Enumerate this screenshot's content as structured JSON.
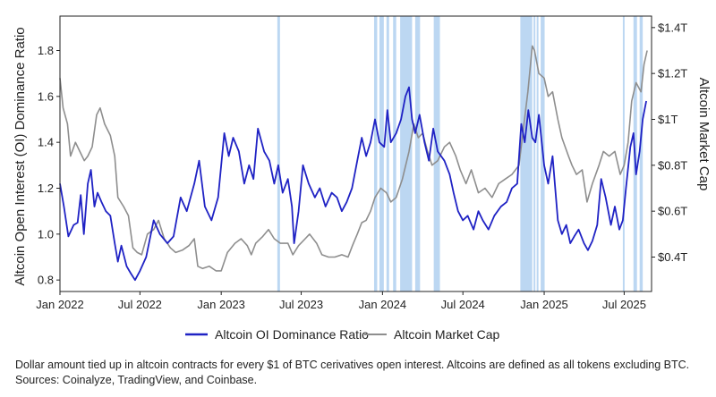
{
  "chart_data": {
    "type": "line",
    "y_left_label": "Altcoin Open Interest (OI) Dominance Ratio",
    "y_right_label": "Altcoin Market Cap",
    "ylim_left": [
      0.75,
      1.95
    ],
    "ylim_right": [
      0.25,
      1.45
    ],
    "x_range": [
      "2022-01-01",
      "2025-09-01"
    ],
    "x_ticks": [
      {
        "date": "2022-01-01",
        "label": "Jan 2022"
      },
      {
        "date": "2022-07-01",
        "label": "Jul 2022"
      },
      {
        "date": "2023-01-01",
        "label": "Jan 2023"
      },
      {
        "date": "2023-07-01",
        "label": "Jul 2023"
      },
      {
        "date": "2024-01-01",
        "label": "Jan 2024"
      },
      {
        "date": "2024-07-01",
        "label": "Jul 2024"
      },
      {
        "date": "2025-01-01",
        "label": "Jan 2025"
      },
      {
        "date": "2025-07-01",
        "label": "Jul 2025"
      }
    ],
    "y_left_ticks": [
      {
        "value": 0.8,
        "label": "0.8"
      },
      {
        "value": 1.0,
        "label": "1.0"
      },
      {
        "value": 1.2,
        "label": "1.2"
      },
      {
        "value": 1.4,
        "label": "1.4"
      },
      {
        "value": 1.6,
        "label": "1.6"
      },
      {
        "value": 1.8,
        "label": "1.8"
      }
    ],
    "y_right_ticks": [
      {
        "value": 0.4,
        "label": "$0.4T"
      },
      {
        "value": 0.6,
        "label": "$0.6T"
      },
      {
        "value": 0.8,
        "label": "$0.8T"
      },
      {
        "value": 1.0,
        "label": "$1T"
      },
      {
        "value": 1.2,
        "label": "$1.2T"
      },
      {
        "value": 1.4,
        "label": "$1.4T"
      }
    ],
    "highlight_bands": [
      [
        "2023-05-08",
        "2023-05-14"
      ],
      [
        "2023-12-13",
        "2023-12-20"
      ],
      [
        "2023-12-25",
        "2024-01-04"
      ],
      [
        "2024-01-10",
        "2024-01-16"
      ],
      [
        "2024-01-25",
        "2024-02-01"
      ],
      [
        "2024-02-10",
        "2024-03-08"
      ],
      [
        "2024-03-15",
        "2024-03-26"
      ],
      [
        "2024-04-26",
        "2024-05-10"
      ],
      [
        "2024-11-08",
        "2024-12-05"
      ],
      [
        "2024-12-08",
        "2024-12-12"
      ],
      [
        "2024-12-15",
        "2024-12-19"
      ],
      [
        "2024-12-24",
        "2025-01-02"
      ],
      [
        "2025-06-28",
        "2025-07-02"
      ],
      [
        "2025-07-22",
        "2025-07-30"
      ],
      [
        "2025-08-05",
        "2025-08-12"
      ]
    ],
    "highlight_color": "#bcd7f2",
    "series": [
      {
        "name": "Altcoin OI Dominance Ratio",
        "axis": "left",
        "color": "#1f22c4",
        "points": [
          [
            "2022-01-01",
            1.22
          ],
          [
            "2022-01-10",
            1.12
          ],
          [
            "2022-01-20",
            0.99
          ],
          [
            "2022-02-01",
            1.04
          ],
          [
            "2022-02-10",
            1.05
          ],
          [
            "2022-02-17",
            1.17
          ],
          [
            "2022-02-24",
            1.0
          ],
          [
            "2022-03-05",
            1.22
          ],
          [
            "2022-03-12",
            1.28
          ],
          [
            "2022-03-20",
            1.12
          ],
          [
            "2022-03-27",
            1.18
          ],
          [
            "2022-04-05",
            1.14
          ],
          [
            "2022-04-15",
            1.1
          ],
          [
            "2022-04-25",
            1.08
          ],
          [
            "2022-05-05",
            0.96
          ],
          [
            "2022-05-12",
            0.88
          ],
          [
            "2022-05-20",
            0.95
          ],
          [
            "2022-06-01",
            0.86
          ],
          [
            "2022-06-10",
            0.83
          ],
          [
            "2022-06-20",
            0.8
          ],
          [
            "2022-07-01",
            0.84
          ],
          [
            "2022-07-15",
            0.9
          ],
          [
            "2022-08-01",
            1.06
          ],
          [
            "2022-08-15",
            1.0
          ],
          [
            "2022-09-01",
            0.96
          ],
          [
            "2022-09-15",
            0.99
          ],
          [
            "2022-10-01",
            1.16
          ],
          [
            "2022-10-15",
            1.1
          ],
          [
            "2022-11-01",
            1.22
          ],
          [
            "2022-11-12",
            1.32
          ],
          [
            "2022-11-25",
            1.12
          ],
          [
            "2022-12-10",
            1.06
          ],
          [
            "2022-12-25",
            1.16
          ],
          [
            "2023-01-08",
            1.44
          ],
          [
            "2023-01-18",
            1.34
          ],
          [
            "2023-01-28",
            1.42
          ],
          [
            "2023-02-10",
            1.36
          ],
          [
            "2023-02-22",
            1.22
          ],
          [
            "2023-03-05",
            1.3
          ],
          [
            "2023-03-15",
            1.24
          ],
          [
            "2023-03-25",
            1.46
          ],
          [
            "2023-04-08",
            1.36
          ],
          [
            "2023-04-20",
            1.32
          ],
          [
            "2023-05-01",
            1.22
          ],
          [
            "2023-05-10",
            1.3
          ],
          [
            "2023-05-20",
            1.18
          ],
          [
            "2023-06-01",
            1.24
          ],
          [
            "2023-06-10",
            1.12
          ],
          [
            "2023-06-15",
            0.96
          ],
          [
            "2023-06-25",
            1.1
          ],
          [
            "2023-07-05",
            1.3
          ],
          [
            "2023-07-18",
            1.22
          ],
          [
            "2023-08-01",
            1.16
          ],
          [
            "2023-08-12",
            1.2
          ],
          [
            "2023-08-25",
            1.12
          ],
          [
            "2023-09-08",
            1.18
          ],
          [
            "2023-09-20",
            1.16
          ],
          [
            "2023-10-01",
            1.1
          ],
          [
            "2023-10-12",
            1.14
          ],
          [
            "2023-10-24",
            1.2
          ],
          [
            "2023-11-05",
            1.32
          ],
          [
            "2023-11-15",
            1.42
          ],
          [
            "2023-11-25",
            1.34
          ],
          [
            "2023-12-05",
            1.4
          ],
          [
            "2023-12-15",
            1.5
          ],
          [
            "2023-12-25",
            1.4
          ],
          [
            "2024-01-05",
            1.38
          ],
          [
            "2024-01-12",
            1.54
          ],
          [
            "2024-01-20",
            1.4
          ],
          [
            "2024-02-01",
            1.44
          ],
          [
            "2024-02-12",
            1.5
          ],
          [
            "2024-02-22",
            1.6
          ],
          [
            "2024-03-01",
            1.64
          ],
          [
            "2024-03-08",
            1.5
          ],
          [
            "2024-03-15",
            1.44
          ],
          [
            "2024-03-25",
            1.52
          ],
          [
            "2024-04-05",
            1.4
          ],
          [
            "2024-04-15",
            1.32
          ],
          [
            "2024-04-25",
            1.46
          ],
          [
            "2024-05-05",
            1.36
          ],
          [
            "2024-05-20",
            1.32
          ],
          [
            "2024-06-01",
            1.26
          ],
          [
            "2024-06-10",
            1.18
          ],
          [
            "2024-06-20",
            1.1
          ],
          [
            "2024-07-01",
            1.06
          ],
          [
            "2024-07-12",
            1.08
          ],
          [
            "2024-07-25",
            1.02
          ],
          [
            "2024-08-05",
            1.1
          ],
          [
            "2024-08-15",
            1.06
          ],
          [
            "2024-08-28",
            1.02
          ],
          [
            "2024-09-10",
            1.08
          ],
          [
            "2024-09-25",
            1.12
          ],
          [
            "2024-10-08",
            1.14
          ],
          [
            "2024-10-20",
            1.2
          ],
          [
            "2024-11-01",
            1.22
          ],
          [
            "2024-11-10",
            1.48
          ],
          [
            "2024-11-18",
            1.4
          ],
          [
            "2024-11-26",
            1.54
          ],
          [
            "2024-12-05",
            1.42
          ],
          [
            "2024-12-12",
            1.4
          ],
          [
            "2024-12-20",
            1.52
          ],
          [
            "2025-01-01",
            1.3
          ],
          [
            "2025-01-10",
            1.22
          ],
          [
            "2025-01-20",
            1.34
          ],
          [
            "2025-02-01",
            1.06
          ],
          [
            "2025-02-10",
            1.0
          ],
          [
            "2025-02-20",
            1.04
          ],
          [
            "2025-03-01",
            0.96
          ],
          [
            "2025-03-10",
            0.99
          ],
          [
            "2025-03-20",
            1.02
          ],
          [
            "2025-04-01",
            0.96
          ],
          [
            "2025-04-10",
            0.93
          ],
          [
            "2025-04-20",
            0.97
          ],
          [
            "2025-05-01",
            1.04
          ],
          [
            "2025-05-10",
            1.24
          ],
          [
            "2025-05-20",
            1.16
          ],
          [
            "2025-06-01",
            1.04
          ],
          [
            "2025-06-10",
            1.12
          ],
          [
            "2025-06-20",
            1.02
          ],
          [
            "2025-06-28",
            1.06
          ],
          [
            "2025-07-05",
            1.2
          ],
          [
            "2025-07-15",
            1.38
          ],
          [
            "2025-07-22",
            1.44
          ],
          [
            "2025-07-28",
            1.26
          ],
          [
            "2025-08-05",
            1.36
          ],
          [
            "2025-08-12",
            1.5
          ],
          [
            "2025-08-20",
            1.58
          ]
        ]
      },
      {
        "name": "Altcoin Market Cap",
        "axis": "right",
        "color": "#8e8e8e",
        "points": [
          [
            "2022-01-01",
            1.18
          ],
          [
            "2022-01-08",
            1.05
          ],
          [
            "2022-01-18",
            0.98
          ],
          [
            "2022-01-25",
            0.84
          ],
          [
            "2022-02-05",
            0.9
          ],
          [
            "2022-02-15",
            0.86
          ],
          [
            "2022-02-25",
            0.82
          ],
          [
            "2022-03-05",
            0.84
          ],
          [
            "2022-03-15",
            0.88
          ],
          [
            "2022-03-25",
            1.02
          ],
          [
            "2022-04-02",
            1.05
          ],
          [
            "2022-04-12",
            0.98
          ],
          [
            "2022-04-25",
            0.93
          ],
          [
            "2022-05-05",
            0.84
          ],
          [
            "2022-05-12",
            0.66
          ],
          [
            "2022-05-25",
            0.62
          ],
          [
            "2022-06-05",
            0.58
          ],
          [
            "2022-06-15",
            0.44
          ],
          [
            "2022-06-25",
            0.42
          ],
          [
            "2022-07-05",
            0.41
          ],
          [
            "2022-07-18",
            0.5
          ],
          [
            "2022-08-01",
            0.52
          ],
          [
            "2022-08-12",
            0.56
          ],
          [
            "2022-08-25",
            0.48
          ],
          [
            "2022-09-08",
            0.44
          ],
          [
            "2022-09-20",
            0.42
          ],
          [
            "2022-10-05",
            0.43
          ],
          [
            "2022-10-20",
            0.45
          ],
          [
            "2022-11-01",
            0.48
          ],
          [
            "2022-11-09",
            0.36
          ],
          [
            "2022-11-20",
            0.35
          ],
          [
            "2022-12-05",
            0.36
          ],
          [
            "2022-12-20",
            0.34
          ],
          [
            "2023-01-01",
            0.34
          ],
          [
            "2023-01-15",
            0.42
          ],
          [
            "2023-02-01",
            0.46
          ],
          [
            "2023-02-15",
            0.48
          ],
          [
            "2023-03-01",
            0.45
          ],
          [
            "2023-03-10",
            0.41
          ],
          [
            "2023-03-20",
            0.46
          ],
          [
            "2023-04-05",
            0.49
          ],
          [
            "2023-04-18",
            0.52
          ],
          [
            "2023-05-01",
            0.48
          ],
          [
            "2023-05-15",
            0.46
          ],
          [
            "2023-06-01",
            0.46
          ],
          [
            "2023-06-12",
            0.41
          ],
          [
            "2023-06-25",
            0.45
          ],
          [
            "2023-07-10",
            0.48
          ],
          [
            "2023-07-20",
            0.5
          ],
          [
            "2023-08-05",
            0.46
          ],
          [
            "2023-08-17",
            0.41
          ],
          [
            "2023-09-01",
            0.4
          ],
          [
            "2023-09-15",
            0.4
          ],
          [
            "2023-10-01",
            0.41
          ],
          [
            "2023-10-15",
            0.4
          ],
          [
            "2023-10-25",
            0.45
          ],
          [
            "2023-11-05",
            0.5
          ],
          [
            "2023-11-15",
            0.55
          ],
          [
            "2023-11-25",
            0.56
          ],
          [
            "2023-12-05",
            0.6
          ],
          [
            "2023-12-15",
            0.66
          ],
          [
            "2023-12-28",
            0.7
          ],
          [
            "2024-01-10",
            0.68
          ],
          [
            "2024-01-20",
            0.64
          ],
          [
            "2024-02-01",
            0.66
          ],
          [
            "2024-02-15",
            0.74
          ],
          [
            "2024-03-01",
            0.86
          ],
          [
            "2024-03-12",
            0.98
          ],
          [
            "2024-03-22",
            0.92
          ],
          [
            "2024-04-01",
            0.94
          ],
          [
            "2024-04-12",
            0.86
          ],
          [
            "2024-04-22",
            0.8
          ],
          [
            "2024-05-05",
            0.82
          ],
          [
            "2024-05-20",
            0.88
          ],
          [
            "2024-06-01",
            0.9
          ],
          [
            "2024-06-15",
            0.84
          ],
          [
            "2024-06-25",
            0.78
          ],
          [
            "2024-07-08",
            0.72
          ],
          [
            "2024-07-20",
            0.78
          ],
          [
            "2024-08-05",
            0.68
          ],
          [
            "2024-08-20",
            0.7
          ],
          [
            "2024-09-05",
            0.66
          ],
          [
            "2024-09-20",
            0.72
          ],
          [
            "2024-10-05",
            0.74
          ],
          [
            "2024-10-20",
            0.76
          ],
          [
            "2024-11-05",
            0.8
          ],
          [
            "2024-11-15",
            0.96
          ],
          [
            "2024-11-25",
            1.12
          ],
          [
            "2024-12-05",
            1.32
          ],
          [
            "2024-12-10",
            1.3
          ],
          [
            "2024-12-20",
            1.2
          ],
          [
            "2025-01-01",
            1.18
          ],
          [
            "2025-01-10",
            1.1
          ],
          [
            "2025-01-20",
            1.12
          ],
          [
            "2025-02-01",
            1.0
          ],
          [
            "2025-02-10",
            0.92
          ],
          [
            "2025-02-25",
            0.84
          ],
          [
            "2025-03-05",
            0.8
          ],
          [
            "2025-03-15",
            0.76
          ],
          [
            "2025-03-28",
            0.78
          ],
          [
            "2025-04-08",
            0.64
          ],
          [
            "2025-04-20",
            0.72
          ],
          [
            "2025-05-05",
            0.8
          ],
          [
            "2025-05-15",
            0.86
          ],
          [
            "2025-05-28",
            0.84
          ],
          [
            "2025-06-10",
            0.86
          ],
          [
            "2025-06-22",
            0.76
          ],
          [
            "2025-07-01",
            0.8
          ],
          [
            "2025-07-10",
            0.9
          ],
          [
            "2025-07-18",
            1.08
          ],
          [
            "2025-07-28",
            1.16
          ],
          [
            "2025-08-08",
            1.12
          ],
          [
            "2025-08-15",
            1.24
          ],
          [
            "2025-08-22",
            1.3
          ]
        ]
      }
    ],
    "legend_position": "bottom"
  },
  "caption": "Dollar amount tied up in altcoin contracts for every $1 of BTC cerivatives open interest. Altcoins are defined as all tokens excluding BTC. Sources: Coinalyze, TradingView, and Coinbase."
}
